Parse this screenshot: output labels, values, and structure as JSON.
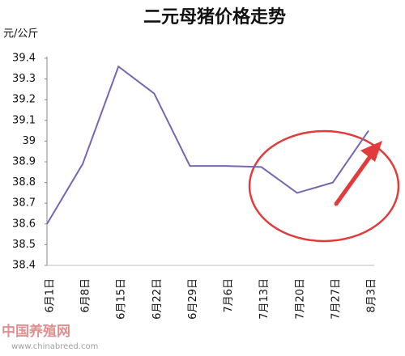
{
  "chart_data": {
    "type": "line",
    "title": "二元母猪价格走势",
    "y_label": "元/公斤",
    "categories": [
      "6月1日",
      "6月8日",
      "6月15日",
      "6月22日",
      "6月29日",
      "7月6日",
      "7月13日",
      "7月20日",
      "7月27日",
      "8月3日"
    ],
    "series": [
      {
        "color": "#7a66b0",
        "values": [
          38.6,
          38.89,
          39.36,
          39.23,
          38.88,
          38.88,
          38.875,
          38.75,
          38.8,
          39.05
        ]
      }
    ],
    "ylim": [
      38.4,
      39.4
    ],
    "yticks": [
      38.4,
      38.5,
      38.6,
      38.7,
      38.8,
      38.9,
      39,
      39.1,
      39.2,
      39.3,
      39.4
    ],
    "grid": false
  },
  "watermark": {
    "name": "中国养殖网",
    "url": "www.chinabreed.com"
  }
}
